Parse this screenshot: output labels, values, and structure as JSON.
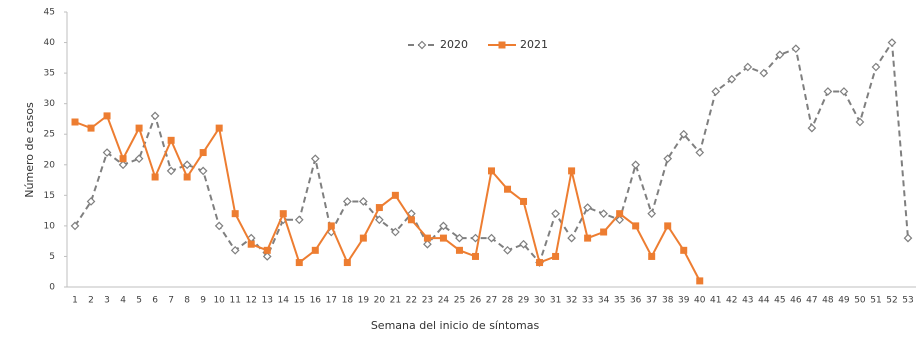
{
  "chart_data": {
    "type": "line",
    "xlabel": "Semana del inicio de síntomas",
    "ylabel": "Número de casos",
    "categories": [
      "1",
      "2",
      "3",
      "4",
      "5",
      "6",
      "7",
      "8",
      "9",
      "10",
      "11",
      "12",
      "13",
      "14",
      "15",
      "16",
      "17",
      "18",
      "19",
      "20",
      "21",
      "22",
      "23",
      "24",
      "25",
      "26",
      "27",
      "28",
      "29",
      "30",
      "31",
      "32",
      "33",
      "34",
      "35",
      "36",
      "37",
      "38",
      "39",
      "40",
      "41",
      "42",
      "43",
      "44",
      "45",
      "46",
      "47",
      "48",
      "49",
      "50",
      "51",
      "52",
      "53"
    ],
    "series": [
      {
        "name": "2020",
        "color": "#7f7f7f",
        "dashed": true,
        "marker": "diamond",
        "values": [
          10,
          14,
          22,
          20,
          21,
          28,
          19,
          20,
          19,
          10,
          6,
          8,
          5,
          11,
          11,
          21,
          9,
          14,
          14,
          11,
          9,
          12,
          7,
          10,
          8,
          8,
          8,
          6,
          7,
          4,
          12,
          8,
          13,
          12,
          11,
          20,
          12,
          21,
          25,
          22,
          32,
          34,
          36,
          35,
          38,
          39,
          26,
          32,
          32,
          27,
          36,
          40,
          8
        ]
      },
      {
        "name": "2021",
        "color": "#ed7d31",
        "dashed": false,
        "marker": "square",
        "values": [
          27,
          26,
          28,
          21,
          26,
          18,
          24,
          18,
          22,
          26,
          12,
          7,
          6,
          12,
          4,
          6,
          10,
          4,
          8,
          13,
          15,
          11,
          8,
          8,
          6,
          5,
          19,
          16,
          14,
          4,
          5,
          19,
          8,
          9,
          12,
          10,
          5,
          10,
          6,
          1,
          null,
          null,
          null,
          null,
          null,
          null,
          null,
          null,
          null,
          null,
          null,
          null,
          null
        ]
      }
    ],
    "ylim": [
      0,
      45
    ],
    "yticks": [
      0,
      5,
      10,
      15,
      20,
      25,
      30,
      35,
      40,
      45
    ],
    "grid": false,
    "legend": "top"
  }
}
